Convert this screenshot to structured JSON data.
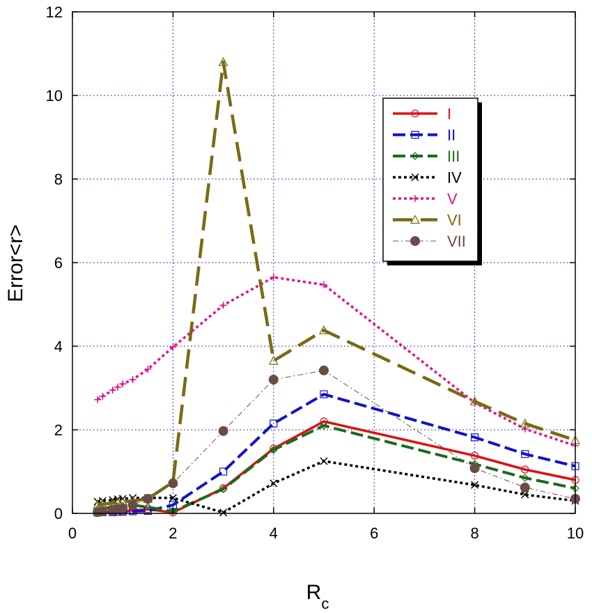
{
  "chart_data": {
    "type": "line",
    "xlabel": "R",
    "xlabel_sub": "c",
    "ylabel": "Error<r>",
    "xlim": [
      0,
      10
    ],
    "ylim": [
      0,
      12
    ],
    "xticks": [
      0,
      2,
      4,
      6,
      8,
      10
    ],
    "yticks": [
      0,
      2,
      4,
      6,
      8,
      10,
      12
    ],
    "grid": true,
    "legend_position": "top-right",
    "series": [
      {
        "name": "I",
        "color": "#dd1111",
        "dash": "solid",
        "marker": "circle",
        "x": [
          0.5,
          0.6,
          0.8,
          0.9,
          1.0,
          1.2,
          1.5,
          2,
          3,
          4,
          5,
          8,
          9,
          10
        ],
        "y": [
          0.02,
          0.03,
          0.03,
          0.04,
          0.05,
          0.07,
          0.1,
          0.02,
          0.6,
          1.55,
          2.2,
          1.38,
          1.05,
          0.8
        ]
      },
      {
        "name": "II",
        "color": "#1111cc",
        "dash": "dash",
        "marker": "square",
        "x": [
          0.5,
          0.6,
          0.8,
          0.9,
          1.0,
          1.2,
          1.5,
          2,
          3,
          4,
          5,
          8,
          9,
          10
        ],
        "y": [
          0.02,
          0.03,
          0.03,
          0.04,
          0.04,
          0.05,
          0.06,
          0.2,
          1.0,
          2.15,
          2.85,
          1.82,
          1.42,
          1.13
        ]
      },
      {
        "name": "III",
        "color": "#1a6b1a",
        "dash": "dash",
        "marker": "diamond",
        "x": [
          0.5,
          0.6,
          0.8,
          0.9,
          1.0,
          1.2,
          1.5,
          2,
          3,
          4,
          5,
          8,
          9,
          10
        ],
        "y": [
          0.1,
          0.12,
          0.15,
          0.17,
          0.18,
          0.2,
          0.15,
          0.05,
          0.58,
          1.52,
          2.1,
          1.18,
          0.85,
          0.6
        ]
      },
      {
        "name": "IV",
        "color": "#000000",
        "dash": "dot",
        "marker": "x",
        "x": [
          0.5,
          0.6,
          0.8,
          0.9,
          1.0,
          1.2,
          1.5,
          2,
          3,
          4,
          5,
          8,
          9,
          10
        ],
        "y": [
          0.28,
          0.3,
          0.32,
          0.34,
          0.35,
          0.37,
          0.37,
          0.37,
          0.02,
          0.72,
          1.25,
          0.68,
          0.45,
          0.3
        ]
      },
      {
        "name": "V",
        "color": "#e0138c",
        "dash": "dot",
        "marker": "plus",
        "x": [
          0.5,
          0.6,
          0.8,
          0.9,
          1.0,
          1.2,
          1.5,
          2,
          3,
          4,
          5,
          8,
          9,
          10
        ],
        "y": [
          2.72,
          2.8,
          2.95,
          3.02,
          3.1,
          3.2,
          3.45,
          3.98,
          4.98,
          5.65,
          5.47,
          2.65,
          2.02,
          1.62
        ]
      },
      {
        "name": "VI",
        "color": "#7a6a12",
        "dash": "longdash",
        "marker": "triangle",
        "x": [
          0.5,
          0.6,
          0.8,
          0.9,
          1.0,
          1.2,
          1.5,
          2,
          3,
          4,
          5,
          8,
          9,
          10
        ],
        "y": [
          0.2,
          0.22,
          0.25,
          0.27,
          0.28,
          0.3,
          0.35,
          0.75,
          10.8,
          3.65,
          4.38,
          2.68,
          2.15,
          1.75
        ]
      },
      {
        "name": "VII",
        "color": "#6b4c44",
        "dash": "dashdot",
        "marker": "filledcircle",
        "x": [
          0.5,
          0.6,
          0.8,
          0.9,
          1.0,
          1.2,
          1.5,
          2,
          3,
          4,
          5,
          8,
          9,
          10
        ],
        "y": [
          0.03,
          0.05,
          0.08,
          0.1,
          0.12,
          0.2,
          0.35,
          0.72,
          1.97,
          3.2,
          3.42,
          1.08,
          0.62,
          0.35
        ]
      }
    ]
  }
}
